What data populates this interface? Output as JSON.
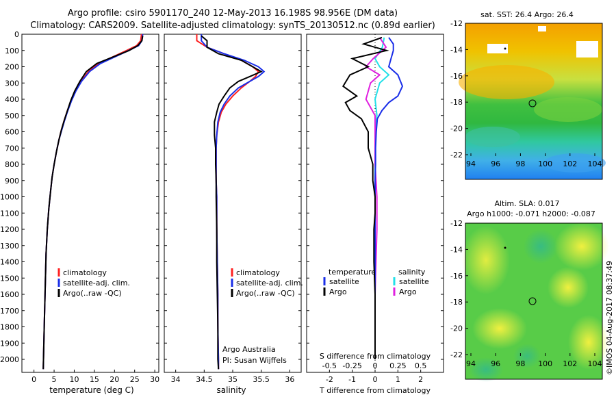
{
  "header": {
    "line1": "Argo profile: csiro 5901170_240 12-May-2013 16.198S 98.956E (DM data)",
    "line2": "Climatology: CARS2009. Satellite-adjusted climatology: synTS_20130512.nc (0.89d earlier)"
  },
  "colors": {
    "climatology": "#ff2020",
    "satellite": "#1a2ee8",
    "argo": "#000000",
    "sal_satellite": "#22e0e8",
    "sal_argo": "#e020e0"
  },
  "depth_ticks": [
    "0",
    "100",
    "200",
    "300",
    "400",
    "500",
    "600",
    "700",
    "800",
    "900",
    "1000",
    "1100",
    "1200",
    "1300",
    "1400",
    "1500",
    "1600",
    "1700",
    "1800",
    "1900",
    "2000"
  ],
  "panels": {
    "temperature": {
      "xlabel": "temperature (deg C)",
      "x_ticks": [
        "0",
        "5",
        "10",
        "15",
        "20",
        "25",
        "30"
      ],
      "legend": [
        "climatology",
        "satellite-adj. clim.",
        "Argo(..raw -QC)"
      ]
    },
    "salinity": {
      "xlabel": "salinity",
      "x_ticks": [
        "34",
        "34.5",
        "35",
        "35.5",
        "36"
      ],
      "legend": [
        "climatology",
        "satellite-adj. clim.",
        "Argo(..raw -QC)"
      ],
      "note1": "Argo Australia",
      "note2": "PI: Susan Wijffels"
    },
    "difference": {
      "xlabel_top": "S difference from climatology",
      "xlabel_bottom": "T difference from climatology",
      "s_ticks": [
        "-0.5",
        "-0.25",
        "0",
        "0.25",
        "0.5"
      ],
      "t_ticks": [
        "-2",
        "-1",
        "0",
        "1",
        "2"
      ],
      "legend_temp_title": "temperature",
      "legend_sal_title": "salinity",
      "legend_temp": [
        "satellite",
        "Argo"
      ],
      "legend_sal": [
        "satellite",
        "Argo"
      ]
    }
  },
  "maps": {
    "sst": {
      "title": "sat. SST: 26.4  Argo: 26.4",
      "lat_ticks": [
        "-12",
        "-14",
        "-16",
        "-18",
        "-20",
        "-22"
      ],
      "lon_ticks": [
        "94",
        "96",
        "98",
        "100",
        "102",
        "104"
      ]
    },
    "sla": {
      "title1": "Altim. SLA: 0.017",
      "title2": "Argo h1000: -0.071 h2000: -0.087",
      "lat_ticks": [
        "-12",
        "-14",
        "-16",
        "-18",
        "-20",
        "-22"
      ],
      "lon_ticks": [
        "94",
        "96",
        "98",
        "100",
        "102",
        "104"
      ]
    }
  },
  "footer": {
    "stamp": "©IMOS 04-Aug-2017 08:37:49"
  },
  "chart_data": [
    {
      "type": "line",
      "title": "",
      "xlabel": "temperature (deg C)",
      "ylabel": "",
      "xlim": [
        -3,
        31
      ],
      "ylim": [
        2080,
        0
      ],
      "series": [
        {
          "name": "climatology",
          "x": [
            26.7,
            26.5,
            25.5,
            23,
            19.5,
            16,
            13.5,
            11.7,
            10.3,
            9.2,
            8.3,
            7.5,
            6.8,
            6.2,
            5.6,
            5.0,
            4.5,
            4.1,
            3.7,
            3.3,
            3.0,
            2.8,
            2.6,
            2.4,
            2.3
          ],
          "y": [
            0,
            40,
            70,
            100,
            140,
            180,
            230,
            290,
            350,
            410,
            470,
            530,
            590,
            650,
            720,
            800,
            880,
            970,
            1070,
            1200,
            1350,
            1550,
            1750,
            1950,
            2060
          ]
        },
        {
          "name": "satellite-adj. clim.",
          "x": [
            27.0,
            26.8,
            26,
            23.5,
            20,
            16.5,
            13.8,
            11.8,
            10.4,
            9.3,
            8.4,
            7.6,
            6.9,
            6.2,
            5.6,
            5.0,
            4.5,
            4.1,
            3.7,
            3.3,
            3.0,
            2.8,
            2.6,
            2.4,
            2.3
          ],
          "y": [
            0,
            40,
            70,
            100,
            140,
            180,
            230,
            290,
            350,
            410,
            470,
            530,
            590,
            650,
            720,
            800,
            880,
            970,
            1070,
            1200,
            1350,
            1550,
            1750,
            1950,
            2060
          ]
        },
        {
          "name": "Argo(..raw -QC)",
          "x": [
            27.0,
            26.8,
            25.8,
            23.6,
            19.6,
            15.6,
            13.0,
            11.4,
            10.1,
            9.1,
            8.3,
            7.5,
            6.8,
            6.2,
            5.6,
            5.0,
            4.5,
            4.1,
            3.7,
            3.3,
            3.0,
            2.8,
            2.6,
            2.4,
            2.3
          ],
          "y": [
            10,
            40,
            70,
            100,
            140,
            180,
            230,
            290,
            350,
            410,
            470,
            530,
            590,
            650,
            720,
            800,
            880,
            970,
            1070,
            1200,
            1350,
            1550,
            1750,
            1950,
            2060
          ]
        }
      ]
    },
    {
      "type": "line",
      "title": "",
      "xlabel": "salinity",
      "ylabel": "",
      "xlim": [
        33.8,
        36.2
      ],
      "ylim": [
        2080,
        0
      ],
      "series": [
        {
          "name": "climatology",
          "x": [
            34.37,
            34.37,
            34.55,
            34.85,
            35.15,
            35.35,
            35.45,
            35.4,
            35.3,
            35.15,
            35.0,
            34.88,
            34.8,
            34.75,
            34.72,
            34.71,
            34.71,
            34.71,
            34.72,
            34.72,
            34.73,
            34.74,
            34.74,
            34.75,
            34.75
          ],
          "y": [
            0,
            40,
            80,
            120,
            160,
            200,
            230,
            260,
            290,
            330,
            380,
            430,
            480,
            540,
            620,
            700,
            800,
            900,
            1000,
            1200,
            1400,
            1600,
            1800,
            2000,
            2060
          ]
        },
        {
          "name": "satellite-adj. clim.",
          "x": [
            34.45,
            34.45,
            34.55,
            34.85,
            35.2,
            35.45,
            35.55,
            35.45,
            35.3,
            35.1,
            34.95,
            34.85,
            34.78,
            34.74,
            34.72,
            34.71,
            34.71,
            34.71,
            34.72,
            34.72,
            34.73,
            34.74,
            34.74,
            34.75,
            34.75
          ],
          "y": [
            0,
            40,
            80,
            120,
            160,
            200,
            230,
            260,
            290,
            330,
            380,
            430,
            480,
            540,
            620,
            700,
            800,
            900,
            1000,
            1200,
            1400,
            1600,
            1800,
            2000,
            2060
          ]
        },
        {
          "name": "Argo(..raw -QC)",
          "x": [
            34.45,
            34.55,
            34.55,
            34.75,
            35.15,
            35.35,
            35.5,
            35.3,
            35.1,
            34.95,
            34.85,
            34.76,
            34.72,
            34.68,
            34.68,
            34.7,
            34.7,
            34.71,
            34.71,
            34.72,
            34.72,
            34.73,
            34.74,
            34.74,
            34.75
          ],
          "y": [
            10,
            40,
            80,
            120,
            160,
            200,
            230,
            260,
            290,
            330,
            380,
            430,
            480,
            540,
            620,
            700,
            800,
            900,
            1000,
            1200,
            1400,
            1600,
            1800,
            2000,
            2060
          ]
        }
      ]
    },
    {
      "type": "line",
      "title": "",
      "xlabel": "T difference from climatology",
      "ylabel": "",
      "xlim": [
        -3,
        3
      ],
      "ylim": [
        2080,
        0
      ],
      "series": [
        {
          "name": "satellite",
          "x": [
            0.6,
            0.8,
            0.8,
            0.7,
            0.6,
            1.0,
            1.2,
            1.0,
            0.6,
            0.3,
            0.1,
            0.05,
            0.02,
            0.02,
            0.0,
            0.0,
            0.0,
            0.0,
            0.0,
            0.0,
            0.0,
            0.0
          ],
          "y": [
            20,
            60,
            100,
            150,
            200,
            250,
            320,
            380,
            420,
            470,
            520,
            600,
            700,
            800,
            900,
            1000,
            1100,
            1200,
            1400,
            1600,
            1800,
            2000
          ]
        },
        {
          "name": "Argo",
          "x": [
            0.3,
            -0.5,
            0.5,
            -1.0,
            -0.3,
            -1.1,
            -1.4,
            -0.8,
            -1.3,
            -1.1,
            -0.6,
            -0.3,
            -0.3,
            -0.1,
            -0.1,
            0.0,
            0.0,
            -0.05,
            -0.05,
            0.0,
            0.0,
            0.0
          ],
          "y": [
            20,
            60,
            100,
            150,
            200,
            250,
            320,
            380,
            420,
            470,
            520,
            600,
            700,
            800,
            900,
            1000,
            1100,
            1200,
            1400,
            1600,
            1800,
            2000
          ]
        }
      ]
    },
    {
      "type": "line",
      "title": "",
      "xlabel": "S difference from climatology",
      "ylabel": "",
      "xlim": [
        -0.75,
        0.75
      ],
      "ylim": [
        2080,
        0
      ],
      "series": [
        {
          "name": "satellite",
          "x": [
            0.1,
            0.08,
            0.0,
            0.05,
            0.15,
            0.05,
            0.0,
            0.02,
            0.0,
            0.0,
            0.0,
            0.0,
            0.0,
            0.0,
            0.0,
            0.0,
            0.0
          ],
          "y": [
            20,
            80,
            150,
            200,
            250,
            300,
            400,
            500,
            600,
            700,
            800,
            1000,
            1200,
            1400,
            1600,
            1800,
            2000
          ]
        },
        {
          "name": "Argo",
          "x": [
            0.05,
            0.12,
            -0.02,
            -0.1,
            0.05,
            -0.05,
            -0.1,
            0.0,
            0.0,
            0.0,
            0.0,
            0.02,
            0.02,
            0.01,
            0.0,
            0.0,
            0.0
          ],
          "y": [
            20,
            80,
            150,
            200,
            250,
            300,
            400,
            500,
            600,
            700,
            800,
            1000,
            1200,
            1400,
            1600,
            1800,
            2000
          ]
        }
      ]
    }
  ]
}
